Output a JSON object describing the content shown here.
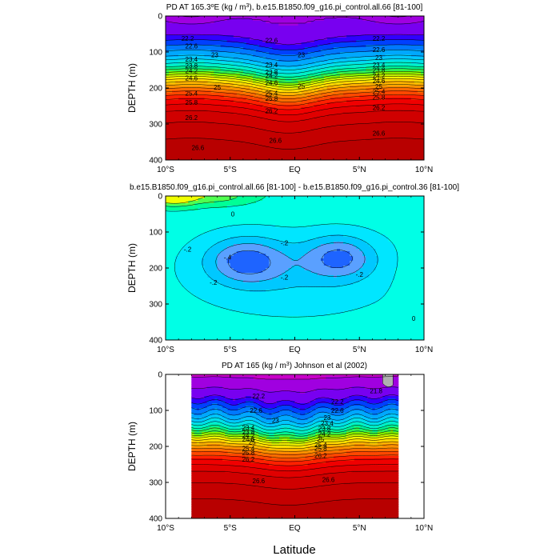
{
  "figure": {
    "xlabel": "Latitude"
  },
  "chart_data": [
    {
      "type": "contour",
      "title": "PD AT 165.3°E (kg / m³), b.e15.B1850.f09_g16.pi_control.all.66 [81-100]",
      "title_parts": {
        "pre": "PD AT 165.3",
        "deg": "o",
        "mid": "E (kg / m",
        "sup": "3",
        "post": "), b.e15.B1850.f09_g16.pi_control.all.66 [81-100]"
      },
      "xlabel": "",
      "ylabel": "DEPTH (m)",
      "x_range": [
        -10,
        10
      ],
      "y_range": [
        0,
        400
      ],
      "y_inverted": true,
      "x_ticks": [
        "10°S",
        "5°S",
        "EQ",
        "5°N",
        "10°N"
      ],
      "x_tick_values": [
        -10,
        -5,
        0,
        5,
        10
      ],
      "y_ticks": [
        0,
        100,
        200,
        300,
        400
      ],
      "data_extent": [
        -10,
        10
      ],
      "contour_levels": [
        21.8,
        22.0,
        22.2,
        22.4,
        22.6,
        22.8,
        23.0,
        23.2,
        23.4,
        23.6,
        23.8,
        24.0,
        24.2,
        24.4,
        24.6,
        24.8,
        25.0,
        25.2,
        25.4,
        25.6,
        25.8,
        26.0,
        26.2,
        26.4,
        26.6,
        26.8
      ],
      "contour_labels": [
        {
          "text": "22.2",
          "x": -8.3,
          "y": 62
        },
        {
          "text": "22.6",
          "x": -8.0,
          "y": 83
        },
        {
          "text": "23.4",
          "x": -8.0,
          "y": 120
        },
        {
          "text": "23.8",
          "x": -8.0,
          "y": 138
        },
        {
          "text": "24.2",
          "x": -8.0,
          "y": 152
        },
        {
          "text": "24.6",
          "x": -8.0,
          "y": 172
        },
        {
          "text": "23",
          "x": -6.2,
          "y": 108
        },
        {
          "text": "25",
          "x": -6.0,
          "y": 198
        },
        {
          "text": "25.4",
          "x": -8.0,
          "y": 214
        },
        {
          "text": "25.8",
          "x": -8.0,
          "y": 240
        },
        {
          "text": "26.2",
          "x": -8.0,
          "y": 282
        },
        {
          "text": "26.6",
          "x": -7.5,
          "y": 365
        },
        {
          "text": "22.6",
          "x": -1.8,
          "y": 68
        },
        {
          "text": "23",
          "x": 0.5,
          "y": 108
        },
        {
          "text": "23.4",
          "x": -1.8,
          "y": 136
        },
        {
          "text": "23.8",
          "x": -1.8,
          "y": 155
        },
        {
          "text": "24.2",
          "x": -1.8,
          "y": 166
        },
        {
          "text": "24.6",
          "x": -1.8,
          "y": 185
        },
        {
          "text": "25",
          "x": 0.5,
          "y": 194
        },
        {
          "text": "25.4",
          "x": -1.8,
          "y": 214
        },
        {
          "text": "25.8",
          "x": -1.8,
          "y": 229
        },
        {
          "text": "26.2",
          "x": -1.8,
          "y": 263
        },
        {
          "text": "26.6",
          "x": -1.5,
          "y": 345
        },
        {
          "text": "22.2",
          "x": 6.5,
          "y": 62
        },
        {
          "text": "22.6",
          "x": 6.5,
          "y": 93
        },
        {
          "text": "23",
          "x": 6.5,
          "y": 116
        },
        {
          "text": "23.4",
          "x": 6.5,
          "y": 136
        },
        {
          "text": "23.8",
          "x": 6.5,
          "y": 150
        },
        {
          "text": "24.2",
          "x": 6.5,
          "y": 165
        },
        {
          "text": "24.6",
          "x": 6.5,
          "y": 180
        },
        {
          "text": "25",
          "x": 6.5,
          "y": 196
        },
        {
          "text": "25.4",
          "x": 6.5,
          "y": 210
        },
        {
          "text": "25.8",
          "x": 6.5,
          "y": 226
        },
        {
          "text": "26.2",
          "x": 6.5,
          "y": 254
        },
        {
          "text": "26.6",
          "x": 6.5,
          "y": 325
        }
      ]
    },
    {
      "type": "contour",
      "title": "b.e15.B1850.f09_g16.pi_control.all.66 [81-100] - b.e15.B1850.f09_g16.pi_control.36 [81-100]",
      "xlabel": "",
      "ylabel": "DEPTH (m)",
      "x_range": [
        -10,
        10
      ],
      "y_range": [
        0,
        400
      ],
      "y_inverted": true,
      "x_ticks": [
        "10°S",
        "5°S",
        "EQ",
        "5°N",
        "10°N"
      ],
      "x_tick_values": [
        -10,
        -5,
        0,
        5,
        10
      ],
      "y_ticks": [
        0,
        100,
        200,
        300,
        400
      ],
      "contour_levels": [
        -0.4,
        -0.3,
        -0.2,
        -0.1,
        0.0,
        0.1,
        0.2,
        0.3
      ],
      "contour_labels": [
        {
          "text": "0",
          "x": -4.8,
          "y": 50
        },
        {
          "text": "-.2",
          "x": -8.3,
          "y": 148
        },
        {
          "text": "-.2",
          "x": -0.8,
          "y": 130
        },
        {
          "text": "-.2",
          "x": -6.3,
          "y": 240
        },
        {
          "text": "-.2",
          "x": -0.8,
          "y": 225
        },
        {
          "text": "-.2",
          "x": 5.0,
          "y": 218
        },
        {
          "text": "-.4",
          "x": -5.2,
          "y": 170
        },
        {
          "text": "0",
          "x": 9.2,
          "y": 340
        }
      ]
    },
    {
      "type": "contour",
      "title": "PD AT 165 (kg / m³) Johnson et al (2002)",
      "title_parts": {
        "pre": "PD AT 165 (kg / m",
        "sup": "3",
        "post": ") Johnson et al (2002)"
      },
      "xlabel": "",
      "ylabel": "DEPTH (m)",
      "x_range": [
        -10,
        10
      ],
      "y_range": [
        0,
        400
      ],
      "y_inverted": true,
      "x_ticks": [
        "10°S",
        "5°S",
        "EQ",
        "5°N",
        "10°N"
      ],
      "x_tick_values": [
        -10,
        -5,
        0,
        5,
        10
      ],
      "y_ticks": [
        0,
        100,
        200,
        300,
        400
      ],
      "data_extent": [
        -8,
        8
      ],
      "contour_levels": [
        21.8,
        22.0,
        22.2,
        22.4,
        22.6,
        22.8,
        23.0,
        23.2,
        23.4,
        23.6,
        23.8,
        24.0,
        24.2,
        24.4,
        24.6,
        24.8,
        25.0,
        25.2,
        25.4,
        25.6,
        25.8,
        26.0,
        26.2,
        26.4,
        26.6,
        26.8
      ],
      "contour_labels": [
        {
          "text": "21.8",
          "x": 6.3,
          "y": 45
        },
        {
          "text": "22.2",
          "x": -2.8,
          "y": 60
        },
        {
          "text": "22.6",
          "x": -3.0,
          "y": 100
        },
        {
          "text": "22.2",
          "x": 3.3,
          "y": 75
        },
        {
          "text": "22.6",
          "x": 3.3,
          "y": 100
        },
        {
          "text": "23",
          "x": -1.5,
          "y": 128
        },
        {
          "text": "23",
          "x": 2.5,
          "y": 120
        },
        {
          "text": "23.4",
          "x": 2.5,
          "y": 135
        },
        {
          "text": "23.8",
          "x": 2.3,
          "y": 150
        },
        {
          "text": "24.2",
          "x": 2.3,
          "y": 165
        },
        {
          "text": "25",
          "x": 2.0,
          "y": 180
        },
        {
          "text": "25.4",
          "x": 2.0,
          "y": 195
        },
        {
          "text": "25.8",
          "x": 2.0,
          "y": 205
        },
        {
          "text": "26.2",
          "x": 2.0,
          "y": 225
        },
        {
          "text": "23.4",
          "x": -3.6,
          "y": 148
        },
        {
          "text": "23.8",
          "x": -3.6,
          "y": 160
        },
        {
          "text": "24.2",
          "x": -3.6,
          "y": 170
        },
        {
          "text": "24.6",
          "x": -3.6,
          "y": 180
        },
        {
          "text": "25",
          "x": -3.3,
          "y": 188
        },
        {
          "text": "25.4",
          "x": -3.6,
          "y": 205
        },
        {
          "text": "25.8",
          "x": -3.6,
          "y": 218
        },
        {
          "text": "26.2",
          "x": -3.6,
          "y": 235
        },
        {
          "text": "26.6",
          "x": -2.8,
          "y": 295
        },
        {
          "text": "26.6",
          "x": 2.6,
          "y": 292
        }
      ]
    }
  ]
}
